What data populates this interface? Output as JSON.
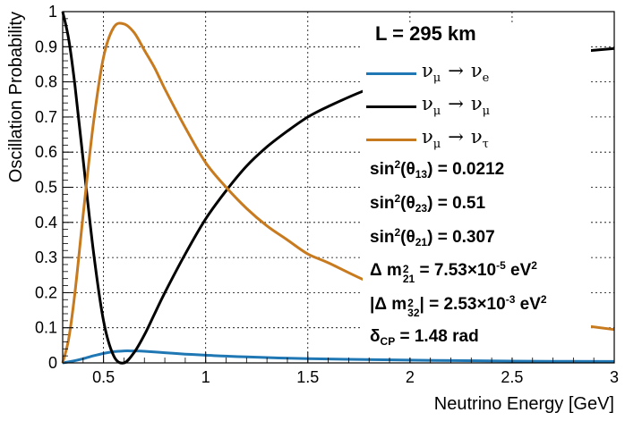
{
  "chart_data": {
    "type": "line",
    "xlabel": "Neutrino Energy [GeV]",
    "ylabel": "Oscillation Probability",
    "xlim": [
      0.3,
      3.0
    ],
    "ylim": [
      0,
      1
    ],
    "x_ticks": [
      "0.5",
      "1",
      "1.5",
      "2",
      "2.5",
      "3"
    ],
    "y_ticks": [
      "0",
      "0.1",
      "0.2",
      "0.3",
      "0.4",
      "0.5",
      "0.6",
      "0.7",
      "0.8",
      "0.9",
      "1"
    ],
    "grid": true,
    "series": [
      {
        "name": "νμ → νe",
        "color": "#1f77b4",
        "x": [
          0.3,
          0.35,
          0.4,
          0.45,
          0.5,
          0.55,
          0.6,
          0.65,
          0.7,
          0.8,
          0.9,
          1.0,
          1.2,
          1.5,
          2.0,
          2.5,
          3.0
        ],
        "y": [
          0.0,
          0.005,
          0.012,
          0.02,
          0.027,
          0.032,
          0.034,
          0.034,
          0.033,
          0.029,
          0.025,
          0.022,
          0.017,
          0.012,
          0.008,
          0.005,
          0.004
        ]
      },
      {
        "name": "νμ → νμ",
        "color": "#000000",
        "x": [
          0.3,
          0.33,
          0.36,
          0.4,
          0.45,
          0.5,
          0.55,
          0.6,
          0.65,
          0.7,
          0.75,
          0.8,
          0.9,
          1.0,
          1.1,
          1.2,
          1.3,
          1.4,
          1.5,
          1.6,
          1.8,
          2.0,
          2.2,
          2.4,
          2.6,
          2.8,
          3.0
        ],
        "y": [
          1.0,
          0.92,
          0.79,
          0.58,
          0.32,
          0.12,
          0.02,
          0.0,
          0.03,
          0.08,
          0.14,
          0.2,
          0.31,
          0.41,
          0.49,
          0.56,
          0.615,
          0.66,
          0.7,
          0.73,
          0.78,
          0.81,
          0.84,
          0.86,
          0.875,
          0.885,
          0.895
        ]
      },
      {
        "name": "νμ → ντ",
        "color": "#c87a1e",
        "x": [
          0.3,
          0.33,
          0.36,
          0.4,
          0.45,
          0.5,
          0.55,
          0.6,
          0.65,
          0.7,
          0.75,
          0.8,
          0.9,
          1.0,
          1.1,
          1.2,
          1.3,
          1.4,
          1.5,
          1.6,
          1.8,
          2.0,
          2.2,
          2.4,
          2.6,
          2.8,
          3.0
        ],
        "y": [
          0.0,
          0.07,
          0.2,
          0.42,
          0.68,
          0.87,
          0.955,
          0.965,
          0.94,
          0.89,
          0.84,
          0.78,
          0.67,
          0.57,
          0.5,
          0.44,
          0.39,
          0.35,
          0.31,
          0.285,
          0.23,
          0.19,
          0.16,
          0.14,
          0.125,
          0.11,
          0.095
        ]
      }
    ]
  },
  "legend": {
    "title": "L = 295 km",
    "entries": [
      {
        "from": "ν",
        "from_sub": "μ",
        "arrow": "→",
        "to": "ν",
        "to_sub": "e",
        "color": "#1f77b4"
      },
      {
        "from": "ν",
        "from_sub": "μ",
        "arrow": "→",
        "to": "ν",
        "to_sub": "μ",
        "color": "#000000"
      },
      {
        "from": "ν",
        "from_sub": "μ",
        "arrow": "→",
        "to": "ν",
        "to_sub": "τ",
        "color": "#c87a1e"
      }
    ]
  },
  "params": {
    "theta13": {
      "prefix": "sin",
      "exp": "2",
      "open": "(θ",
      "sub": "13",
      "close": ") = 0.0212"
    },
    "theta23": {
      "prefix": "sin",
      "exp": "2",
      "open": "(θ",
      "sub": "23",
      "close": ") = 0.51"
    },
    "theta21": {
      "prefix": "sin",
      "exp": "2",
      "open": "(θ",
      "sub": "21",
      "close": ") = 0.307"
    },
    "dm21": {
      "prefix": "Δ m",
      "sup": "2",
      "sub": "21",
      "mid": " = 7.53×10",
      "exp": "-5",
      "unit": " eV",
      "unit_exp": "2"
    },
    "dm32": {
      "prefix": "|Δ m",
      "sup": "2",
      "sub": "32",
      "mid": "| = 2.53×10",
      "exp": "-3",
      "unit": " eV",
      "unit_exp": "2"
    },
    "dcp": {
      "prefix": "δ",
      "sub": "CP",
      "rest": " = 1.48 rad"
    }
  }
}
